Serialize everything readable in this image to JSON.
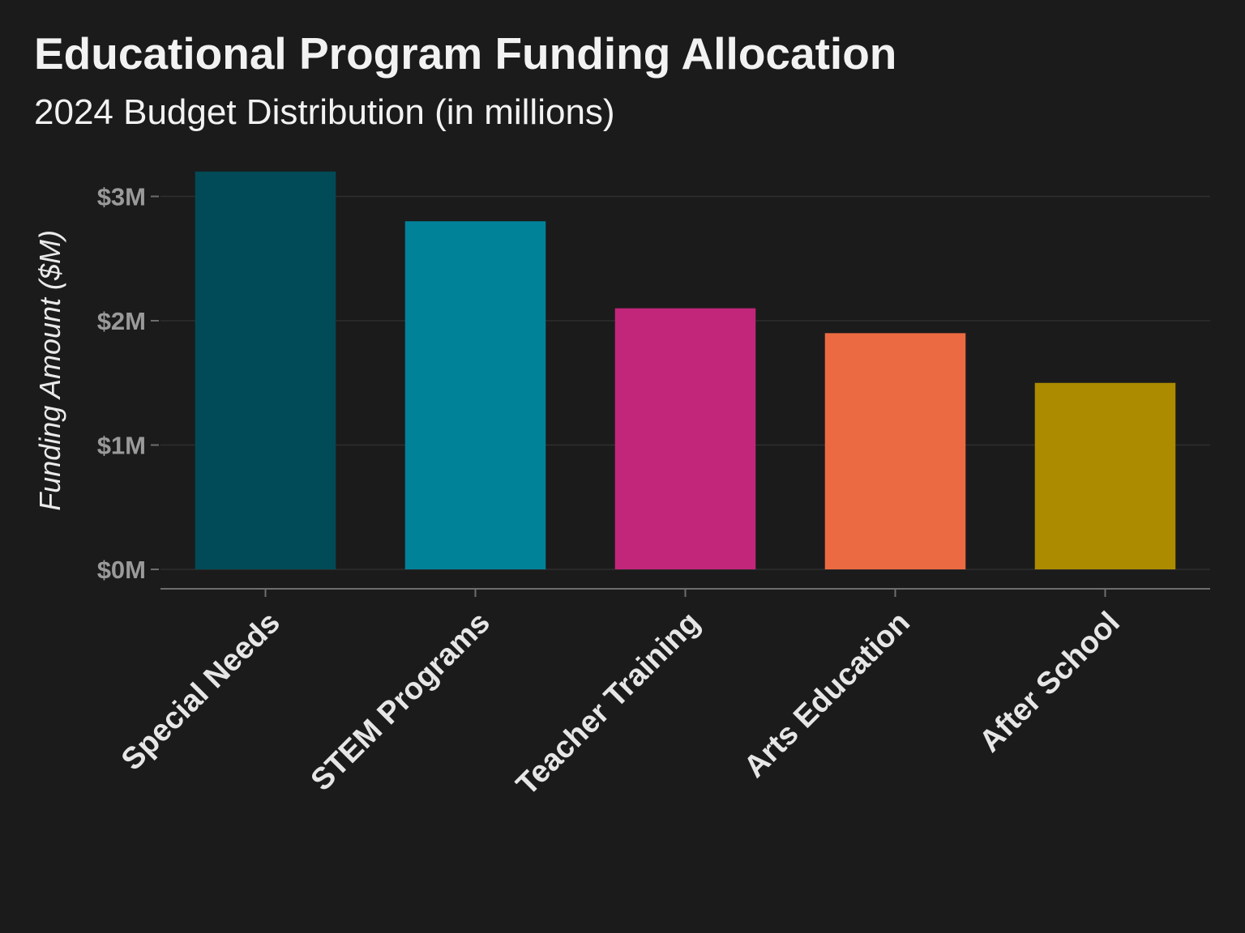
{
  "chart_data": {
    "type": "bar",
    "title": "Educational Program Funding Allocation",
    "subtitle": "2024 Budget Distribution (in millions)",
    "xlabel": "",
    "ylabel": "Funding Amount ($M)",
    "categories": [
      "Special Needs",
      "STEM Programs",
      "Teacher Training",
      "Arts Education",
      "After School"
    ],
    "values": [
      3.2,
      2.8,
      2.1,
      1.9,
      1.5
    ],
    "colors": [
      "#004b57",
      "#008299",
      "#c2267a",
      "#ec6a42",
      "#ac8b00"
    ],
    "ylim": [
      0,
      3.2
    ],
    "yticks": [
      0,
      1,
      2,
      3
    ],
    "ytick_labels": [
      "$0M",
      "$1M",
      "$2M",
      "$3M"
    ],
    "grid": "horizontal",
    "legend": "none",
    "background": "#1b1b1b",
    "grid_color": "#2e2e2e",
    "axis_color": "#6e6e6e"
  }
}
